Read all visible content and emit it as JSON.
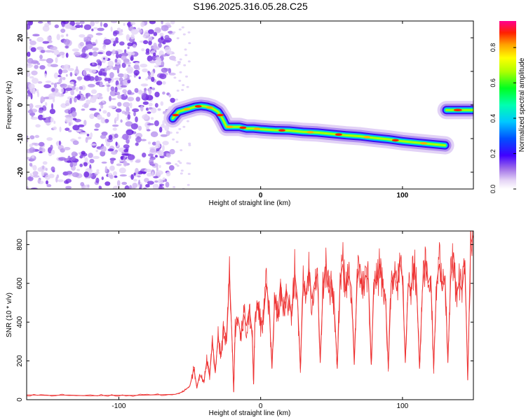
{
  "title": "S196.2025.316.05.28.C25",
  "chart_data": [
    {
      "type": "heatmap",
      "name": "spectrogram",
      "xlabel": "Height of straight line (km)",
      "ylabel": "Frequency (Hz)",
      "xlim": [
        -165,
        150
      ],
      "ylim": [
        -25,
        25
      ],
      "xticks": [
        -100,
        0,
        100
      ],
      "xtick_labels": [
        "-100",
        "0",
        "100"
      ],
      "yticks": [
        20,
        10,
        0,
        -10,
        -20
      ],
      "ytick_labels": [
        "20",
        "10",
        "0",
        "-10",
        "-20"
      ],
      "noise_region": {
        "x_from": -165,
        "x_to": -62,
        "description_level": "low amplitude scatter"
      },
      "trace": {
        "x": [
          -62,
          -58,
          -54,
          -50,
          -46,
          -42,
          -38,
          -34,
          -30,
          -27,
          -24,
          -20,
          -15,
          -10,
          -5,
          0,
          10,
          20,
          30,
          40,
          50,
          60,
          70,
          80,
          90,
          100,
          110,
          120,
          130
        ],
        "y": [
          -4,
          -2,
          -1.5,
          -1,
          -0.5,
          -0.3,
          -0.5,
          -1,
          -2,
          -4,
          -6.5,
          -6.5,
          -6.5,
          -7,
          -7,
          -7.2,
          -7.5,
          -7.6,
          -8,
          -8.2,
          -8.6,
          -9,
          -9.3,
          -9.8,
          -10.2,
          -10.8,
          -11.2,
          -11.6,
          -12
        ]
      },
      "trace_right": {
        "x_from": 131,
        "x_to": 150,
        "y": -1.5
      },
      "colorbar": {
        "label": "Normalized spectral amplitude",
        "range": [
          0,
          0.95
        ],
        "ticks": [
          0,
          0.2,
          0.4,
          0.6,
          0.8
        ],
        "tick_labels": [
          "0.0",
          "0.2",
          "0.4",
          "0.6",
          "0.8"
        ]
      }
    },
    {
      "type": "line",
      "name": "snr",
      "xlabel": "Height of straight line (km)",
      "ylabel": "SNR (10 * v/v)",
      "xlim": [
        -165,
        150
      ],
      "ylim": [
        0,
        870
      ],
      "xticks": [
        -100,
        0,
        100
      ],
      "xtick_labels": [
        "-100",
        "0",
        "100"
      ],
      "yticks": [
        0,
        200,
        400,
        600,
        800
      ],
      "ytick_labels": [
        "0",
        "200",
        "400",
        "600",
        "800"
      ],
      "color": "#ee3333",
      "series": [
        {
          "name": "SNR",
          "x": [
            -165,
            -150,
            -135,
            -120,
            -105,
            -90,
            -75,
            -60,
            -55,
            -50,
            -47,
            -45,
            -43,
            -40,
            -38,
            -36,
            -34,
            -32,
            -30,
            -28,
            -26,
            -24,
            -22,
            -20,
            -19,
            -18,
            -16,
            -14,
            -12,
            -10,
            -8,
            -6,
            -5,
            -4,
            -2,
            0,
            2,
            4,
            6,
            8,
            10,
            12,
            14,
            16,
            18,
            20,
            22,
            24,
            26,
            28,
            30,
            32,
            34,
            36,
            38,
            40,
            42,
            44,
            46,
            48,
            50,
            52,
            54,
            56,
            58,
            60,
            62,
            64,
            66,
            68,
            70,
            72,
            74,
            76,
            78,
            80,
            82,
            84,
            86,
            88,
            90,
            92,
            94,
            96,
            98,
            100,
            102,
            104,
            106,
            108,
            110,
            112,
            114,
            116,
            118,
            120,
            122,
            124,
            126,
            128,
            130,
            132,
            134,
            136,
            138,
            140,
            142,
            144,
            146,
            148,
            150
          ],
          "y": [
            25,
            22,
            24,
            20,
            23,
            22,
            25,
            28,
            40,
            70,
            160,
            60,
            130,
            90,
            200,
            120,
            300,
            140,
            330,
            220,
            380,
            300,
            650,
            280,
            40,
            360,
            420,
            330,
            440,
            380,
            470,
            350,
            80,
            420,
            500,
            380,
            420,
            600,
            470,
            160,
            540,
            420,
            610,
            460,
            570,
            500,
            430,
            660,
            520,
            160,
            600,
            540,
            680,
            520,
            600,
            650,
            190,
            580,
            700,
            550,
            620,
            470,
            160,
            620,
            700,
            560,
            640,
            580,
            180,
            600,
            700,
            560,
            640,
            620,
            180,
            620,
            600,
            700,
            580,
            540,
            160,
            600,
            650,
            560,
            720,
            620,
            190,
            600,
            560,
            700,
            590,
            160,
            560,
            720,
            600,
            640,
            160,
            600,
            700,
            560,
            640,
            190,
            620,
            760,
            540,
            600,
            560,
            720,
            100,
            800,
            850
          ]
        }
      ]
    }
  ]
}
